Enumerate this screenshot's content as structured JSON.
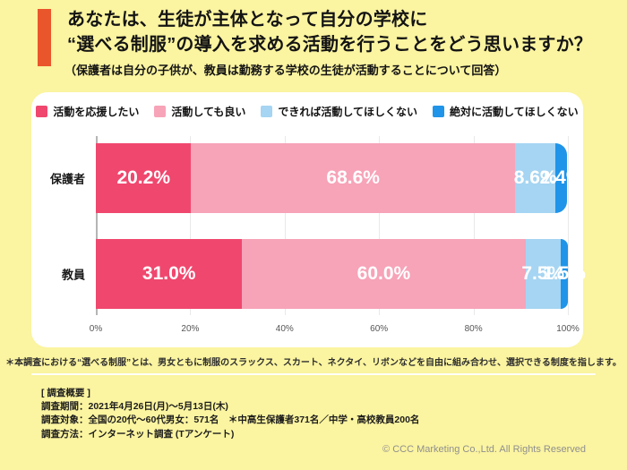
{
  "title": {
    "line1": "あなたは、生徒が主体となって自分の学校に",
    "line2": "“選べる制服”の導入を求める活動を行うことをどう思いますか？",
    "subtitle": "（保護者は自分の子供が、教員は勤務する学校の生徒が活動することについて回答）"
  },
  "colors": {
    "background": "#FBF4A0",
    "accent_bar": "#EA562C",
    "panel": "#FFFFFF",
    "support": "#F0476E",
    "ok": "#F7A3B8",
    "prefer_not": "#A5D5F2",
    "absolutely_not": "#2094E8"
  },
  "chart_data": {
    "type": "bar",
    "orientation": "horizontal_stacked",
    "categories": [
      "保護者",
      "教員"
    ],
    "series": [
      {
        "name": "活動を応援したい",
        "color": "#F0476E",
        "values": [
          20.2,
          31.0
        ]
      },
      {
        "name": "活動しても良い",
        "color": "#F7A3B8",
        "values": [
          68.6,
          60.0
        ]
      },
      {
        "name": "できれば活動してほしくない",
        "color": "#A5D5F2",
        "values": [
          8.6,
          7.5
        ]
      },
      {
        "name": "絶対に活動してほしくない",
        "color": "#2094E8",
        "values": [
          2.4,
          1.5
        ]
      }
    ],
    "x_ticks": [
      "0%",
      "20%",
      "40%",
      "60%",
      "80%",
      "100%"
    ],
    "xlim": [
      0,
      100
    ],
    "value_label_suffix": "%",
    "legend_position": "top",
    "grid": true
  },
  "footnote": "＊本調査における“選べる制服”とは、男女ともに制服のスラックス、スカート、ネクタイ、リボンなどを自由に組み合わせ、選択できる制度を指します。",
  "survey": {
    "heading": "[ 調査概要 ]",
    "lines": [
      "調査期間：2021年4月26日(月)〜5月13日(木)",
      "調査対象：全国の20代〜60代男女：571名　＊中高生保護者371名／中学・高校教員200名",
      "調査方法：インターネット調査 (Tアンケート)"
    ]
  },
  "copyright": "© CCC Marketing Co.,Ltd. All Rights Reserved"
}
